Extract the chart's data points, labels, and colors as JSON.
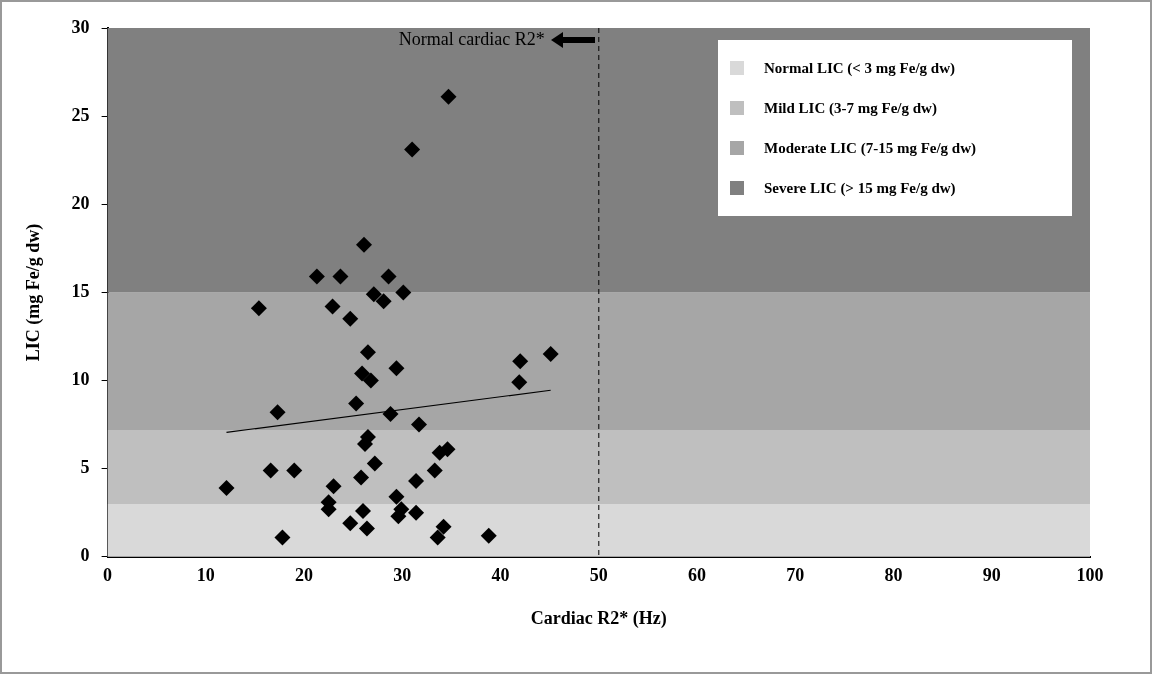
{
  "chart_data": {
    "type": "scatter",
    "xlabel": "Cardiac R2* (Hz)",
    "ylabel": "LIC (mg Fe/g dw)",
    "xlim": [
      0,
      100
    ],
    "ylim": [
      0,
      30
    ],
    "xticks": [
      0,
      10,
      20,
      30,
      40,
      50,
      60,
      70,
      80,
      90,
      100
    ],
    "yticks": [
      0,
      5,
      10,
      15,
      20,
      25,
      30
    ],
    "grid": false,
    "legend": "top right",
    "marker": "diamond",
    "series": [
      {
        "color": "#000000",
        "x": [
          12.1,
          16.6,
          19.0,
          17.3,
          17.8,
          23.0,
          22.5,
          22.5,
          24.7,
          25.8,
          27.2,
          26.2,
          26.5,
          26.0,
          26.4,
          25.3,
          25.9,
          26.8,
          26.5,
          29.4,
          28.8,
          31.7,
          29.4,
          29.9,
          29.6,
          31.4,
          31.4,
          33.3,
          33.8,
          34.6,
          34.2,
          33.6,
          38.8,
          41.9,
          42.0,
          45.1,
          34.7,
          31.0,
          26.1,
          21.3,
          23.7,
          28.6,
          30.1,
          27.1,
          28.1,
          15.4,
          22.9,
          24.7
        ],
        "values": [
          3.9,
          4.9,
          4.9,
          8.2,
          1.1,
          4.0,
          3.1,
          2.7,
          1.9,
          4.5,
          5.3,
          6.4,
          6.8,
          2.6,
          1.6,
          8.7,
          10.4,
          10.0,
          11.6,
          10.7,
          8.1,
          7.5,
          3.4,
          2.7,
          2.3,
          4.3,
          2.5,
          4.9,
          5.9,
          6.1,
          1.7,
          1.1,
          1.2,
          9.9,
          11.1,
          11.5,
          26.1,
          23.1,
          17.7,
          15.9,
          15.9,
          15.9,
          15.0,
          14.9,
          14.5,
          14.1,
          14.2,
          13.5
        ]
      },
      {
        "type": "line",
        "color": "#000000",
        "marker": "none",
        "x": [
          12.1,
          45.1
        ],
        "values": [
          7.06,
          9.45
        ]
      }
    ],
    "bands": [
      {
        "axis": "y",
        "from": 0,
        "to": 3,
        "label": "Normal LIC (< 3 mg Fe/g dw)",
        "color": "#d9d9d9"
      },
      {
        "axis": "y",
        "from": 3,
        "to": 7.2,
        "label": "Mild LIC (3-7 mg Fe/g dw)",
        "color": "#bfbfbf"
      },
      {
        "axis": "y",
        "from": 7.2,
        "to": 15,
        "label": "Moderate LIC (7-15 mg Fe/g dw)",
        "color": "#a6a6a6"
      },
      {
        "axis": "y",
        "from": 15,
        "to": 30,
        "label": "Severe LIC (> 15 mg Fe/g dw)",
        "color": "#808080"
      }
    ],
    "ref_lines": [
      {
        "axis": "x",
        "value": 50,
        "label": "Normal cardiac R2*",
        "color": "#000000",
        "line_style": "dashed"
      }
    ]
  }
}
